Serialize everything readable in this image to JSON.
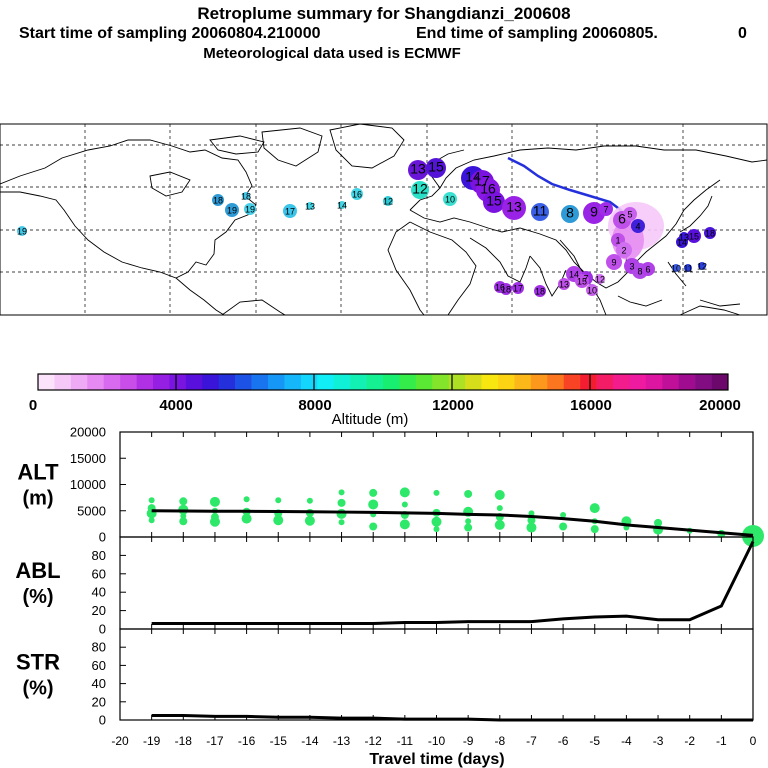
{
  "header": {
    "title": "Retroplume summary for Shangdianzi_200608",
    "start_label": "Start time of sampling 20060804.210000",
    "end_label": "End time of sampling 20060805.",
    "end_suffix": "0",
    "met_label": "Meteorological data used is ECMWF"
  },
  "colorbar": {
    "label": "Altitude (m)",
    "ticks": [
      "0",
      "4000",
      "8000",
      "12000",
      "16000",
      "20000"
    ],
    "colors": [
      "#fbe3fb",
      "#f6c8f8",
      "#eeaaf5",
      "#e58af2",
      "#d86af0",
      "#c84de9",
      "#b030e6",
      "#9520e3",
      "#7a14e0",
      "#5a10dc",
      "#3a14d8",
      "#2430dc",
      "#1c52e6",
      "#1874ef",
      "#1696f6",
      "#16b6fb",
      "#14d6fc",
      "#12eef6",
      "#10f0d6",
      "#12f0b4",
      "#14f092",
      "#18ee70",
      "#34ec4a",
      "#5ae834",
      "#84e42c",
      "#aee024",
      "#d6de1c",
      "#f8e610",
      "#fcd414",
      "#fcb818",
      "#fc981c",
      "#fc7620",
      "#f84424",
      "#f41c30",
      "#f41c64",
      "#f21c8c",
      "#ee1aa0",
      "#dc16a0",
      "#c0109a",
      "#a00c90",
      "#820c82",
      "#6c086c"
    ]
  },
  "map_labels": [
    {
      "t": "19",
      "c": "#46c8e8"
    },
    {
      "t": "18",
      "c": "#2e9ad6"
    },
    {
      "t": "19",
      "c": "#2e9ad6"
    },
    {
      "t": "18",
      "c": "#46c8e8"
    },
    {
      "t": "17",
      "c": "#3cc4ea"
    },
    {
      "t": "19",
      "c": "#48d0ea"
    },
    {
      "t": "13",
      "c": "#44d6e6"
    },
    {
      "t": "14",
      "c": "#44d6e6"
    },
    {
      "t": "16",
      "c": "#44d6e6"
    },
    {
      "t": "12",
      "c": "#2ecbd6"
    },
    {
      "t": "12",
      "c": "#2ae0c6"
    },
    {
      "t": "10",
      "c": "#3ce0d0"
    },
    {
      "t": "13",
      "c": "#6a16d8"
    },
    {
      "t": "15",
      "c": "#5414d8"
    },
    {
      "t": "14",
      "c": "#3a14d8"
    },
    {
      "t": "17",
      "c": "#7a12e0"
    },
    {
      "t": "16",
      "c": "#8a18e4"
    },
    {
      "t": "15",
      "c": "#7a12e0"
    },
    {
      "t": "13",
      "c": "#9a22e6"
    },
    {
      "t": "11",
      "c": "#3a60e8"
    },
    {
      "t": "8",
      "c": "#2e9ad6"
    },
    {
      "t": "9",
      "c": "#9a24e6"
    },
    {
      "t": "7",
      "c": "#a02ee8"
    },
    {
      "t": "6",
      "c": "#c050ea"
    },
    {
      "t": "5",
      "c": "#c862ee"
    },
    {
      "t": "4",
      "c": "#4020d8"
    },
    {
      "t": "1",
      "c": "#c050ea"
    },
    {
      "t": "2",
      "c": "#d070f0"
    },
    {
      "t": "3",
      "c": "#b040e8"
    },
    {
      "t": "9",
      "c": "#c050ea"
    },
    {
      "t": "8",
      "c": "#b048e8"
    },
    {
      "t": "6",
      "c": "#b040e8"
    },
    {
      "t": "7",
      "c": "#a030e6"
    },
    {
      "t": "14",
      "c": "#b040e8"
    },
    {
      "t": "13",
      "c": "#c050ea"
    },
    {
      "t": "15",
      "c": "#c050ea"
    },
    {
      "t": "12",
      "c": "#d070f0"
    },
    {
      "t": "10",
      "c": "#c862ee"
    },
    {
      "t": "16",
      "c": "#a030e6"
    },
    {
      "t": "18",
      "c": "#a030e6"
    },
    {
      "t": "17",
      "c": "#a030e6"
    },
    {
      "t": "18",
      "c": "#a030e6"
    },
    {
      "t": "14",
      "c": "#3a14d8"
    },
    {
      "t": "15",
      "c": "#5a10dc"
    },
    {
      "t": "18",
      "c": "#4a14d8"
    },
    {
      "t": "13",
      "c": "#3a14d8"
    },
    {
      "t": "10",
      "c": "#3c5ce6"
    },
    {
      "t": "11",
      "c": "#2a40dc"
    },
    {
      "t": "12",
      "c": "#2a40dc"
    }
  ],
  "chart_data": [
    {
      "type": "line",
      "name": "ALT",
      "ylabel": "ALT (m)",
      "ylabel_lines": [
        "ALT",
        "(m)"
      ],
      "ylim": [
        0,
        20000
      ],
      "yticks": [
        "0",
        "5000",
        "10000",
        "15000",
        "20000"
      ],
      "x": [
        -19,
        -18,
        -17,
        -16,
        -15,
        -14,
        -13,
        -12,
        -11,
        -10,
        -9,
        -8,
        -7,
        -6,
        -5,
        -4,
        -3,
        -2,
        -1,
        0
      ],
      "values": [
        5000,
        4950,
        4900,
        4900,
        4850,
        4800,
        4750,
        4700,
        4600,
        4500,
        4300,
        4200,
        3900,
        3500,
        3000,
        2300,
        1800,
        1300,
        800,
        300
      ],
      "scatter": {
        "color": "#2ee86a",
        "x": [
          -19,
          -19,
          -19,
          -19,
          -18,
          -18,
          -18,
          -18,
          -17,
          -17,
          -17,
          -17,
          -16,
          -16,
          -16,
          -15,
          -15,
          -15,
          -14,
          -14,
          -14,
          -13,
          -13,
          -13,
          -13,
          -12,
          -12,
          -12,
          -12,
          -11,
          -11,
          -11,
          -11,
          -10,
          -10,
          -10,
          -10,
          -9,
          -9,
          -9,
          -9,
          -8,
          -8,
          -8,
          -8,
          -7,
          -7,
          -7,
          -6,
          -6,
          -5,
          -5,
          -5,
          -4,
          -4,
          -3,
          -3,
          -2,
          -1,
          0
        ],
        "y": [
          7000,
          5500,
          4500,
          3200,
          6800,
          5200,
          4000,
          3000,
          6700,
          5000,
          3800,
          2900,
          7200,
          4800,
          3500,
          7000,
          4500,
          3200,
          6900,
          4600,
          3100,
          8500,
          6500,
          4400,
          2800,
          8400,
          6200,
          4300,
          2000,
          8500,
          6200,
          4200,
          2400,
          8400,
          4600,
          2900,
          1500,
          8200,
          4800,
          3000,
          1800,
          8000,
          5500,
          3800,
          2300,
          4500,
          3200,
          1800,
          4200,
          2000,
          5500,
          3000,
          1500,
          3000,
          1800,
          2700,
          1400,
          1200,
          600,
          200
        ]
      },
      "title": "",
      "xlabel": ""
    },
    {
      "type": "line",
      "name": "ABL",
      "ylabel": "ABL (%)",
      "ylabel_lines": [
        "ABL",
        "(%)"
      ],
      "ylim": [
        0,
        100
      ],
      "yticks": [
        "0",
        "20",
        "40",
        "60",
        "80"
      ],
      "x": [
        -19,
        -18,
        -17,
        -16,
        -15,
        -14,
        -13,
        -12,
        -11,
        -10,
        -9,
        -8,
        -7,
        -6,
        -5,
        -4,
        -3,
        -2,
        -1,
        0
      ],
      "values": [
        6,
        6,
        6,
        6,
        6,
        6,
        6,
        6,
        7,
        7,
        8,
        8,
        8,
        11,
        13,
        14,
        10,
        10,
        25,
        95
      ]
    },
    {
      "type": "line",
      "name": "STR",
      "ylabel": "STR (%)",
      "ylabel_lines": [
        "STR",
        "(%)"
      ],
      "ylim": [
        0,
        100
      ],
      "yticks": [
        "0",
        "20",
        "40",
        "60",
        "80"
      ],
      "x": [
        -19,
        -18,
        -17,
        -16,
        -15,
        -14,
        -13,
        -12,
        -11,
        -10,
        -9,
        -8,
        -7,
        -6,
        -5,
        -4,
        -3,
        -2,
        -1,
        0
      ],
      "values": [
        5,
        5,
        4,
        4,
        3,
        3,
        2,
        2,
        1,
        1,
        1,
        0,
        0,
        0,
        0,
        0,
        0,
        0,
        0,
        0
      ],
      "xlabel": "Travel time (days)",
      "xticks": [
        "-20",
        "-19",
        "-18",
        "-17",
        "-16",
        "-15",
        "-14",
        "-13",
        "-12",
        "-11",
        "-10",
        "-9",
        "-8",
        "-7",
        "-6",
        "-5",
        "-4",
        "-3",
        "-2",
        "-1",
        "0"
      ]
    }
  ]
}
